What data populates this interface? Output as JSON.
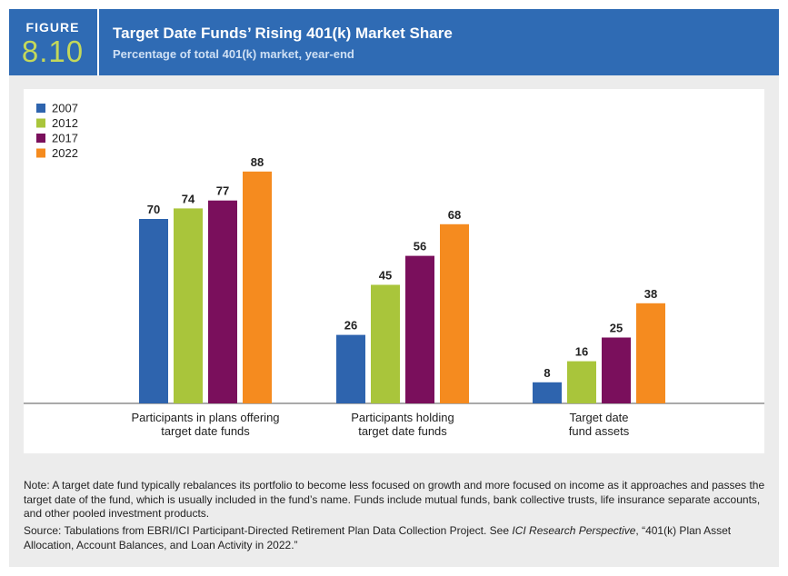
{
  "header": {
    "figure_word": "FIGURE",
    "figure_number": "8.10",
    "title": "Target Date Funds’ Rising 401(k) Market Share",
    "subtitle": "Percentage of total 401(k) market, year-end"
  },
  "colors": {
    "header_bg": "#2f6bb4",
    "figure_number": "#c4d85a",
    "background": "#ececec"
  },
  "chart_data": {
    "type": "bar",
    "title": "",
    "xlabel": "",
    "ylabel": "",
    "ylim": [
      0,
      100
    ],
    "grid": false,
    "legend_position": "top-left",
    "categories": [
      [
        "Participants in plans offering",
        "target date funds"
      ],
      [
        "Participants holding",
        "target date funds"
      ],
      [
        "Target date",
        "fund assets"
      ]
    ],
    "series": [
      {
        "name": "2007",
        "color": "#2e64ae",
        "values": [
          70,
          26,
          8
        ]
      },
      {
        "name": "2012",
        "color": "#a9c53b",
        "values": [
          74,
          45,
          16
        ]
      },
      {
        "name": "2017",
        "color": "#7a0f5c",
        "values": [
          77,
          56,
          25
        ]
      },
      {
        "name": "2022",
        "color": "#f58b1f",
        "values": [
          88,
          68,
          38
        ]
      }
    ]
  },
  "footer": {
    "note": "Note: A target date fund typically rebalances its portfolio to become less focused on growth and more focused on income as it approaches and passes the target date of the fund, which is usually included in the fund’s name. Funds include mutual funds, bank collective trusts, life insurance separate accounts, and other pooled investment products.",
    "source_prefix": "Source: Tabulations from EBRI/ICI Participant-Directed Retirement Plan Data Collection Project. See ",
    "source_italic": "ICI Research Perspective",
    "source_suffix": ", “401(k) Plan Asset Allocation, Account Balances, and Loan Activity in 2022.”"
  }
}
